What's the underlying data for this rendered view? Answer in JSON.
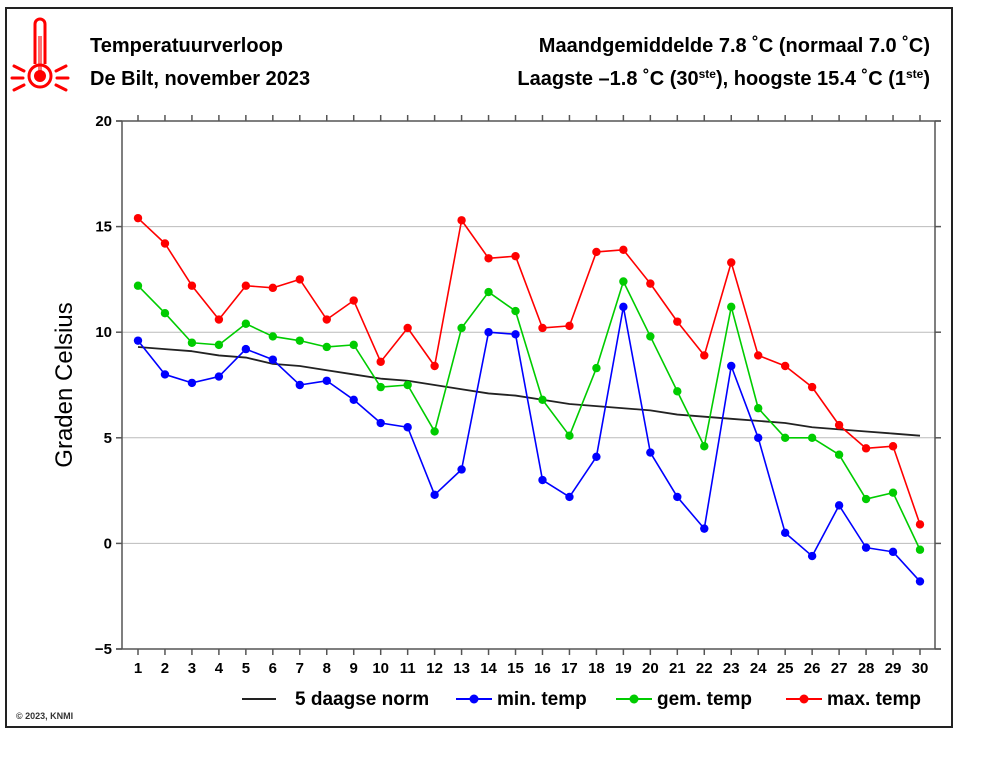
{
  "header": {
    "title": "Temperatuurverloop",
    "subtitle": "De Bilt, november 2023",
    "summary_line1": "Maandgemiddelde 7.8 ˚C (normaal 7.0 ˚C)",
    "summary_line2_a": "Laagste –1.8 ˚C (30",
    "summary_line2_sup1": "ste",
    "summary_line2_b": "), hoogste 15.4 ˚C (1",
    "summary_line2_sup2": "ste",
    "summary_line2_c": ")",
    "icon": "thermometer-hot-icon"
  },
  "copyright": "© 2023, KNMI",
  "colors": {
    "max": "#ff0000",
    "gem": "#00cc00",
    "min": "#0000ff",
    "norm": "#222222",
    "grid": "#bbbbbb",
    "icon": "#ff0000"
  },
  "chart_data": {
    "type": "line",
    "title": "Temperatuurverloop",
    "xlabel": "",
    "ylabel": "Graden Celsius",
    "ylim": [
      -5,
      20
    ],
    "xlim": [
      1,
      30
    ],
    "grid": true,
    "legend_position": "bottom",
    "yticks": [
      -5,
      0,
      5,
      10,
      15,
      20
    ],
    "ytick_labels": [
      "−5",
      "0",
      "5",
      "10",
      "15",
      "20"
    ],
    "x": [
      1,
      2,
      3,
      4,
      5,
      6,
      7,
      8,
      9,
      10,
      11,
      12,
      13,
      14,
      15,
      16,
      17,
      18,
      19,
      20,
      21,
      22,
      23,
      24,
      25,
      26,
      27,
      28,
      29,
      30
    ],
    "xtick_labels": [
      "1",
      "2",
      "3",
      "4",
      "5",
      "6",
      "7",
      "8",
      "9",
      "10",
      "11",
      "12",
      "13",
      "14",
      "15",
      "16",
      "17",
      "18",
      "19",
      "20",
      "21",
      "22",
      "23",
      "24",
      "25",
      "26",
      "27",
      "28",
      "29",
      "30"
    ],
    "series": [
      {
        "key": "norm",
        "name": "5 daagse norm",
        "markers": false,
        "values": [
          9.3,
          9.2,
          9.1,
          8.9,
          8.8,
          8.5,
          8.4,
          8.2,
          8.0,
          7.8,
          7.7,
          7.5,
          7.3,
          7.1,
          7.0,
          6.8,
          6.6,
          6.5,
          6.4,
          6.3,
          6.1,
          6.0,
          5.9,
          5.8,
          5.7,
          5.5,
          5.4,
          5.3,
          5.2,
          5.1
        ]
      },
      {
        "key": "min",
        "name": "min. temp",
        "markers": true,
        "values": [
          9.6,
          8.0,
          7.6,
          7.9,
          9.2,
          8.7,
          7.5,
          7.7,
          6.8,
          5.7,
          5.5,
          2.3,
          3.5,
          10.0,
          9.9,
          3.0,
          2.2,
          4.1,
          11.2,
          4.3,
          2.2,
          0.7,
          8.4,
          5.0,
          0.5,
          -0.6,
          1.8,
          -0.2,
          -0.4,
          -1.8
        ]
      },
      {
        "key": "gem",
        "name": "gem. temp",
        "markers": true,
        "values": [
          12.2,
          10.9,
          9.5,
          9.4,
          10.4,
          9.8,
          9.6,
          9.3,
          9.4,
          7.4,
          7.5,
          5.3,
          10.2,
          11.9,
          11.0,
          6.8,
          5.1,
          8.3,
          12.4,
          9.8,
          7.2,
          4.6,
          11.2,
          6.4,
          5.0,
          5.0,
          4.2,
          2.1,
          2.4,
          -0.3
        ]
      },
      {
        "key": "max",
        "name": "max. temp",
        "markers": true,
        "values": [
          15.4,
          14.2,
          12.2,
          10.6,
          12.2,
          12.1,
          12.5,
          10.6,
          11.5,
          8.6,
          10.2,
          8.4,
          15.3,
          13.5,
          13.6,
          10.2,
          10.3,
          13.8,
          13.9,
          12.3,
          10.5,
          8.9,
          13.3,
          8.9,
          8.4,
          7.4,
          5.6,
          4.5,
          4.6,
          0.9
        ]
      }
    ]
  }
}
